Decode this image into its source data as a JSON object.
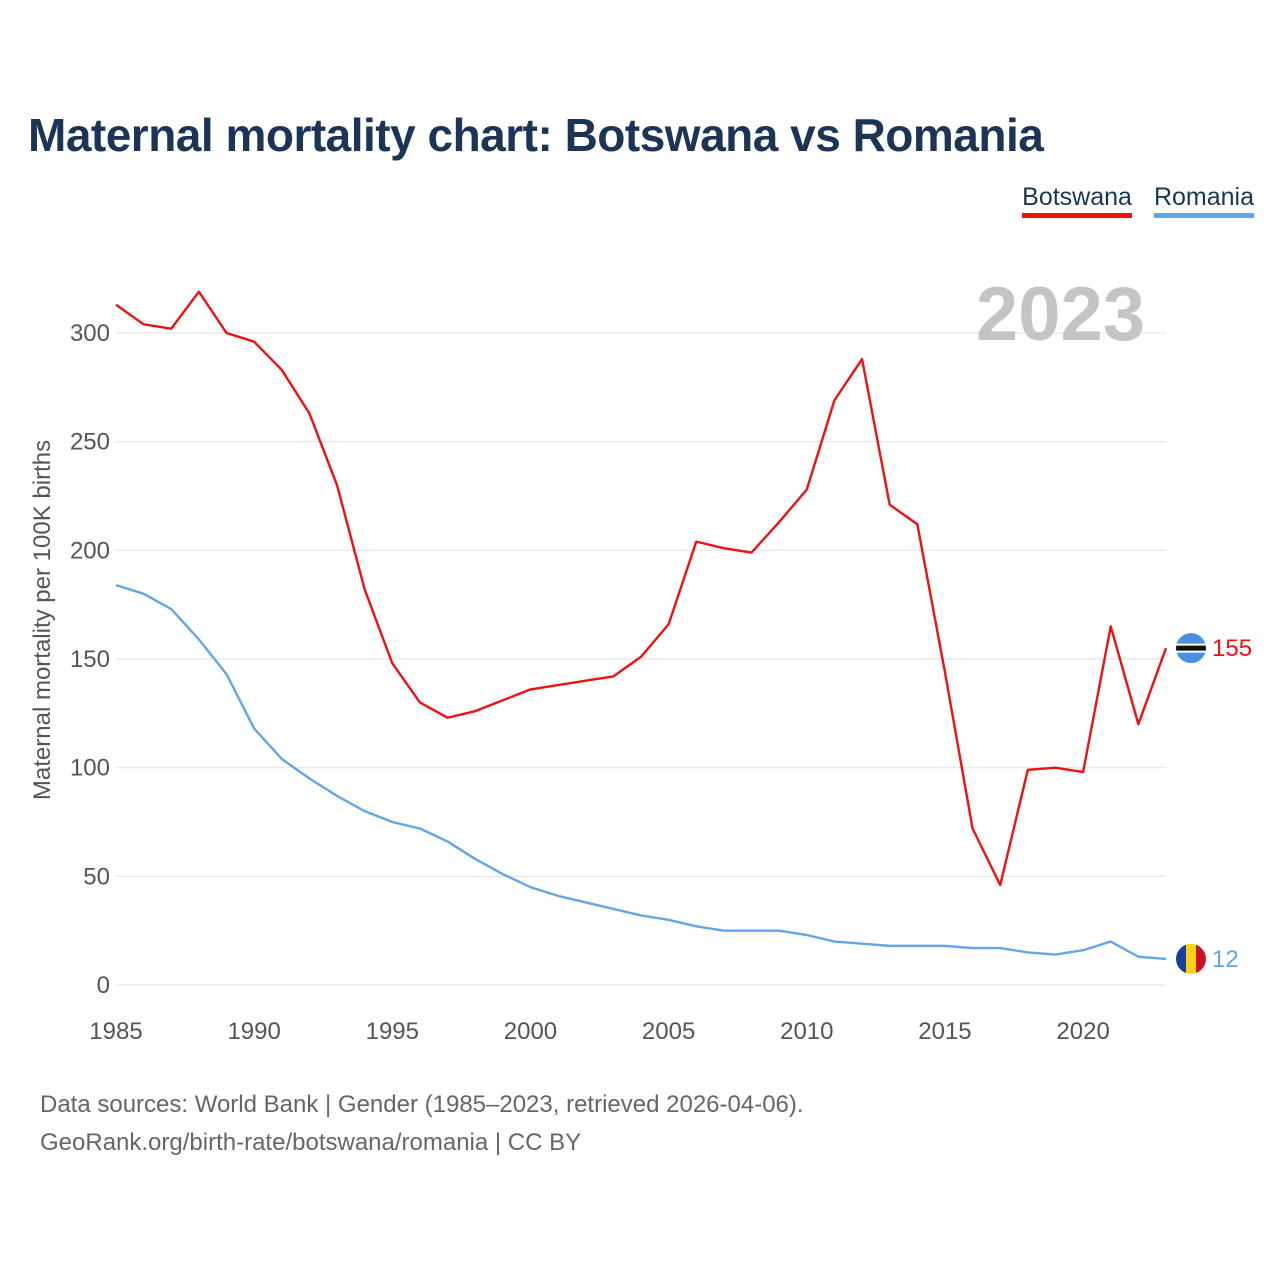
{
  "title": "Maternal mortality chart: Botswana vs Romania",
  "legend": [
    {
      "name": "Botswana",
      "color": "#ee1111"
    },
    {
      "name": "Romania",
      "color": "#63a6e8"
    }
  ],
  "footer": {
    "source": "Data sources: World Bank | Gender (1985–2023, retrieved 2026-04-06).",
    "url": "GeoRank.org/birth-rate/botswana/romania | CC BY"
  },
  "chart_data": {
    "type": "line",
    "title": "Maternal mortality chart: Botswana vs Romania",
    "xlabel": "",
    "ylabel": "Maternal mortality per 100K births",
    "year_label": "2023",
    "xlim": [
      1985,
      2023
    ],
    "ylim": [
      0,
      300
    ],
    "x_ticks": [
      1985,
      1990,
      1995,
      2000,
      2005,
      2010,
      2015,
      2020
    ],
    "y_ticks": [
      0,
      50,
      100,
      150,
      200,
      250,
      300
    ],
    "x": [
      1985,
      1986,
      1987,
      1988,
      1989,
      1990,
      1991,
      1992,
      1993,
      1994,
      1995,
      1996,
      1997,
      1998,
      1999,
      2000,
      2001,
      2002,
      2003,
      2004,
      2005,
      2006,
      2007,
      2008,
      2009,
      2010,
      2011,
      2012,
      2013,
      2014,
      2015,
      2016,
      2017,
      2018,
      2019,
      2020,
      2021,
      2022,
      2023
    ],
    "series": [
      {
        "name": "Botswana",
        "color": "#ee1111",
        "end_label": "155",
        "flag": "botswana-flag",
        "values": [
          313,
          304,
          302,
          319,
          300,
          296,
          283,
          263,
          230,
          182,
          148,
          130,
          123,
          126,
          131,
          136,
          138,
          140,
          142,
          151,
          166,
          204,
          201,
          199,
          213,
          228,
          269,
          288,
          221,
          212,
          144,
          72,
          46,
          99,
          100,
          98,
          165,
          120,
          155
        ]
      },
      {
        "name": "Romania",
        "color": "#63a6e8",
        "end_label": "12",
        "flag": "romania-flag",
        "values": [
          184,
          180,
          173,
          159,
          143,
          118,
          104,
          95,
          87,
          80,
          75,
          72,
          66,
          58,
          51,
          45,
          41,
          38,
          35,
          32,
          30,
          27,
          25,
          25,
          25,
          23,
          20,
          19,
          18,
          18,
          18,
          17,
          17,
          15,
          14,
          16,
          20,
          13,
          12
        ]
      }
    ],
    "grid": true,
    "legend_position": "top-right"
  }
}
